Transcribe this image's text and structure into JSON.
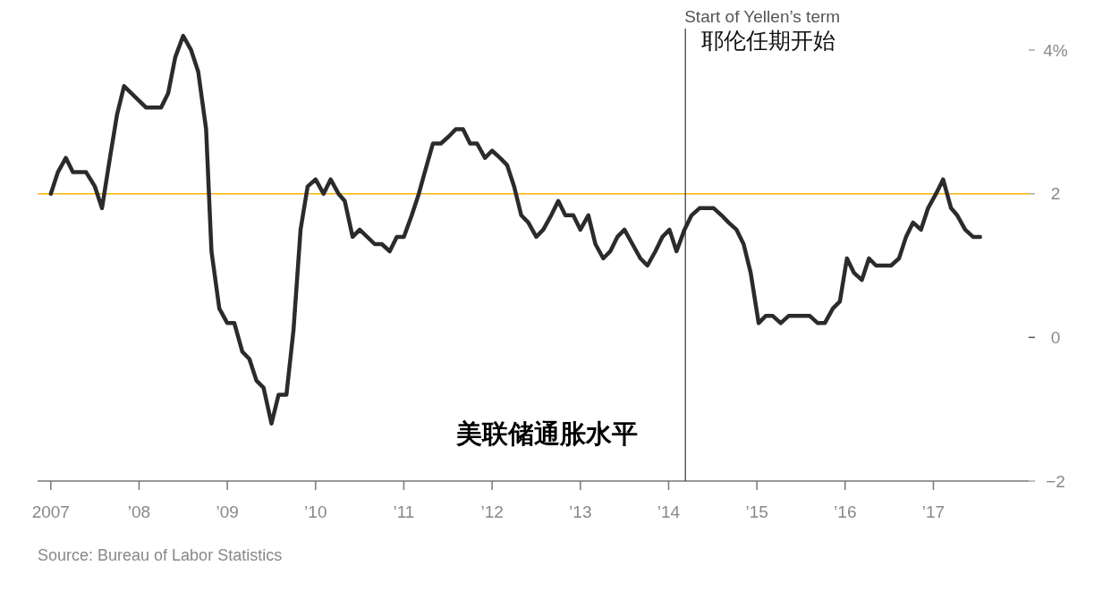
{
  "chart_data": {
    "type": "line",
    "title": "美联储通胀水平",
    "annotations": [
      "耶伦任期开始",
      "Source: Bureau of Labor Statistics"
    ],
    "x": [
      2007.0,
      2007.08,
      2007.17,
      2007.25,
      2007.4,
      2007.5,
      2007.58,
      2007.67,
      2007.75,
      2007.83,
      2008.08,
      2008.25,
      2008.33,
      2008.41,
      2008.5,
      2008.59,
      2008.67,
      2008.76,
      2008.82,
      2008.91,
      2009.0,
      2009.08,
      2009.17,
      2009.25,
      2009.33,
      2009.41,
      2009.5,
      2009.58,
      2009.67,
      2009.75,
      2009.83,
      2009.91,
      2010.0,
      2010.09,
      2010.17,
      2010.26,
      2010.33,
      2010.42,
      2010.5,
      2010.67,
      2010.75,
      2010.84,
      2010.92,
      2011.0,
      2011.09,
      2011.17,
      2011.26,
      2011.33,
      2011.42,
      2011.51,
      2011.59,
      2011.67,
      2011.75,
      2011.83,
      2011.92,
      2012.0,
      2012.09,
      2012.17,
      2012.25,
      2012.33,
      2012.41,
      2012.5,
      2012.58,
      2012.67,
      2012.75,
      2012.83,
      2012.92,
      2013.0,
      2013.09,
      2013.17,
      2013.26,
      2013.34,
      2013.42,
      2013.5,
      2013.59,
      2013.68,
      2013.76,
      2013.85,
      2013.93,
      2014.01,
      2014.09,
      2014.18,
      2014.26,
      2014.35,
      2014.51,
      2014.6,
      2014.68,
      2014.77,
      2014.85,
      2014.93,
      2015.02,
      2015.1,
      2015.18,
      2015.27,
      2015.36,
      2015.6,
      2015.69,
      2015.77,
      2015.86,
      2015.94,
      2016.02,
      2016.1,
      2016.19,
      2016.27,
      2016.35,
      2016.52,
      2016.61,
      2016.69,
      2016.77,
      2016.86,
      2016.94,
      2017.03,
      2017.11,
      2017.2,
      2017.27,
      2017.36,
      2017.45,
      2017.53
    ],
    "series": [
      {
        "color": "#2b2b2b",
        "values": [
          2.0,
          2.3,
          2.5,
          2.3,
          2.3,
          2.1,
          1.8,
          2.5,
          3.1,
          3.5,
          3.2,
          3.2,
          3.4,
          3.9,
          4.2,
          4.0,
          3.7,
          2.9,
          1.2,
          0.4,
          0.2,
          0.2,
          -0.2,
          -0.3,
          -0.6,
          -0.7,
          -1.2,
          -0.8,
          -0.8,
          0.1,
          1.5,
          2.1,
          2.2,
          2.0,
          2.2,
          2.0,
          1.9,
          1.4,
          1.5,
          1.3,
          1.3,
          1.2,
          1.4,
          1.4,
          1.7,
          2.0,
          2.4,
          2.7,
          2.7,
          2.8,
          2.9,
          2.9,
          2.7,
          2.7,
          2.5,
          2.6,
          2.5,
          2.4,
          2.1,
          1.7,
          1.6,
          1.4,
          1.5,
          1.7,
          1.9,
          1.7,
          1.7,
          1.5,
          1.7,
          1.3,
          1.1,
          1.2,
          1.4,
          1.5,
          1.3,
          1.1,
          1.0,
          1.2,
          1.4,
          1.5,
          1.2,
          1.5,
          1.7,
          1.8,
          1.8,
          1.7,
          1.6,
          1.5,
          1.3,
          0.9,
          0.2,
          0.3,
          0.3,
          0.2,
          0.3,
          0.3,
          0.2,
          0.2,
          0.4,
          0.5,
          1.1,
          0.9,
          0.8,
          1.1,
          1.0,
          1.0,
          1.1,
          1.4,
          1.6,
          1.5,
          1.8,
          2.0,
          2.2,
          1.8,
          1.7,
          1.5,
          1.4,
          1.4
        ]
      }
    ],
    "xlim": [
      2006.85,
      2018.08
    ],
    "xticks": [
      2007,
      {
        "value": 2008,
        "label": "’08"
      },
      {
        "value": 2009,
        "label": "’09"
      },
      {
        "value": 2010,
        "label": "’10"
      },
      {
        "value": 2011,
        "label": "’11"
      },
      {
        "value": 2012,
        "label": "’12"
      },
      {
        "value": 2013,
        "label": "’13"
      },
      {
        "value": 2014,
        "label": "’14"
      },
      {
        "value": 2015,
        "label": "’15"
      },
      {
        "value": 2016,
        "label": "’16"
      },
      {
        "value": 2017,
        "label": "’17"
      }
    ],
    "ylim": [
      -2,
      4.3
    ],
    "yticks": [
      {
        "value": 4,
        "label": "4%"
      },
      2,
      0,
      {
        "value": -2,
        "label": "−2"
      }
    ],
    "ref_lines": [
      {
        "axis": "y",
        "value": 2,
        "color": "#f5b400"
      },
      {
        "axis": "x",
        "value": 2014.19,
        "label": "Start of Yellen’s term",
        "color": "#333333"
      }
    ]
  }
}
